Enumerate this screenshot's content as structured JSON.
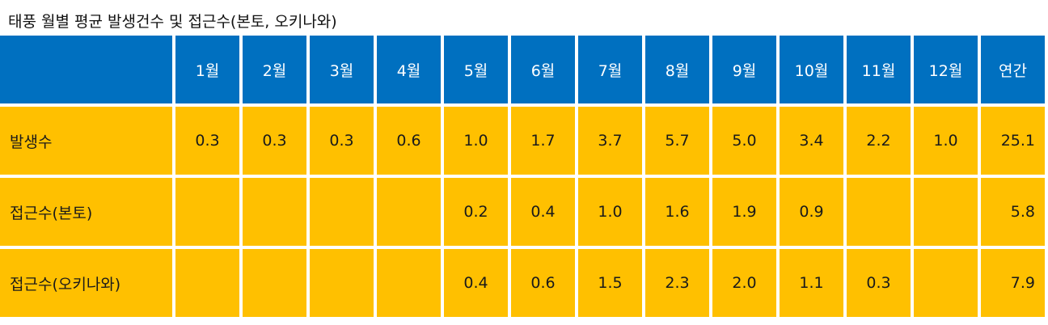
{
  "chart_data": {
    "type": "table",
    "title": "태풍 월별 평균 발생건수 및 접근수(본토, 오키나와)",
    "columns": [
      "",
      "1월",
      "2월",
      "3월",
      "4월",
      "5월",
      "6월",
      "7월",
      "8월",
      "9월",
      "10월",
      "11월",
      "12월",
      "연간"
    ],
    "rows": [
      {
        "label": "발생수",
        "values": [
          "0.3",
          "0.3",
          "0.3",
          "0.6",
          "1.0",
          "1.7",
          "3.7",
          "5.7",
          "5.0",
          "3.4",
          "2.2",
          "1.0",
          "25.1"
        ]
      },
      {
        "label": "접근수(본토)",
        "values": [
          "",
          "",
          "",
          "",
          "0.2",
          "0.4",
          "1.0",
          "1.6",
          "1.9",
          "0.9",
          "",
          "",
          "5.8"
        ]
      },
      {
        "label": "접근수(오키나와)",
        "values": [
          "",
          "",
          "",
          "",
          "0.4",
          "0.6",
          "1.5",
          "2.3",
          "2.0",
          "1.1",
          "0.3",
          "",
          "7.9"
        ]
      }
    ]
  },
  "colors": {
    "header_bg": "#0070c0",
    "body_bg": "#ffc000",
    "header_text": "#ffffff"
  }
}
